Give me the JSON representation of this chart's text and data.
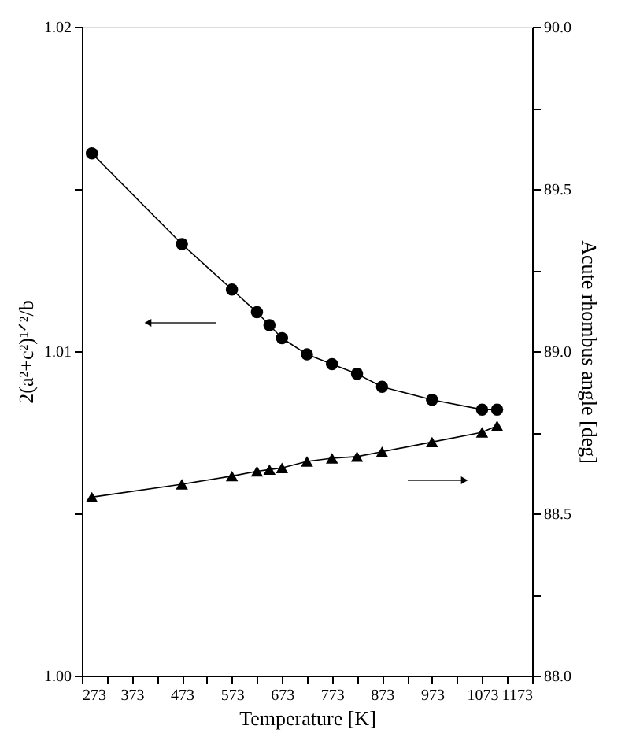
{
  "chart_data": {
    "type": "line",
    "xlabel": "Temperature [K]",
    "ylabel": "2(a²+c²)¹ᐟ²/b",
    "y2label": "Acute rhombus angle [deg]",
    "x": [
      293,
      473,
      573,
      623,
      648,
      673,
      723,
      773,
      823,
      873,
      973,
      1073,
      1103
    ],
    "xlim": [
      273,
      1173
    ],
    "xticks": [
      273,
      {
        "value": 323,
        "label": null
      },
      373,
      {
        "value": 423,
        "label": null
      },
      473,
      {
        "value": 523,
        "label": null
      },
      573,
      {
        "value": 623,
        "label": null
      },
      673,
      {
        "value": 723,
        "label": null
      },
      773,
      {
        "value": 823,
        "label": null
      },
      873,
      {
        "value": 923,
        "label": null
      },
      973,
      {
        "value": 1023,
        "label": null
      },
      1073,
      {
        "value": 1123,
        "label": null
      },
      1173
    ],
    "ylim": [
      1.0,
      1.02
    ],
    "yticks": [
      {
        "value": 1.0,
        "label": "1.00"
      },
      {
        "value": 1.005,
        "label": null
      },
      1.01,
      {
        "value": 1.015,
        "label": null
      },
      1.02
    ],
    "y2lim": [
      88.0,
      90.0
    ],
    "y2ticks": [
      {
        "value": 88.0,
        "label": "88.0"
      },
      {
        "value": 88.25,
        "label": null
      },
      88.5,
      {
        "value": 88.75,
        "label": null
      },
      {
        "value": 89.0,
        "label": "89.0"
      },
      {
        "value": 89.25,
        "label": null
      },
      89.5,
      {
        "value": 89.75,
        "label": null
      },
      {
        "value": 90.0,
        "label": "90.0"
      }
    ],
    "series": [
      {
        "color": "#000000",
        "marker": "circle",
        "values": [
          1.0161,
          1.0133,
          1.0119,
          1.0112,
          1.0108,
          1.0104,
          1.0099,
          1.0096,
          1.0093,
          1.0089,
          1.0085,
          1.0082,
          1.0082
        ]
      },
      {
        "color": "#000000",
        "marker": "triangle",
        "axis": "y2",
        "values": [
          88.55,
          88.59,
          88.615,
          88.63,
          88.635,
          88.64,
          88.66,
          88.67,
          88.675,
          88.69,
          88.72,
          88.75,
          88.77
        ]
      }
    ],
    "line_style": "solid"
  }
}
